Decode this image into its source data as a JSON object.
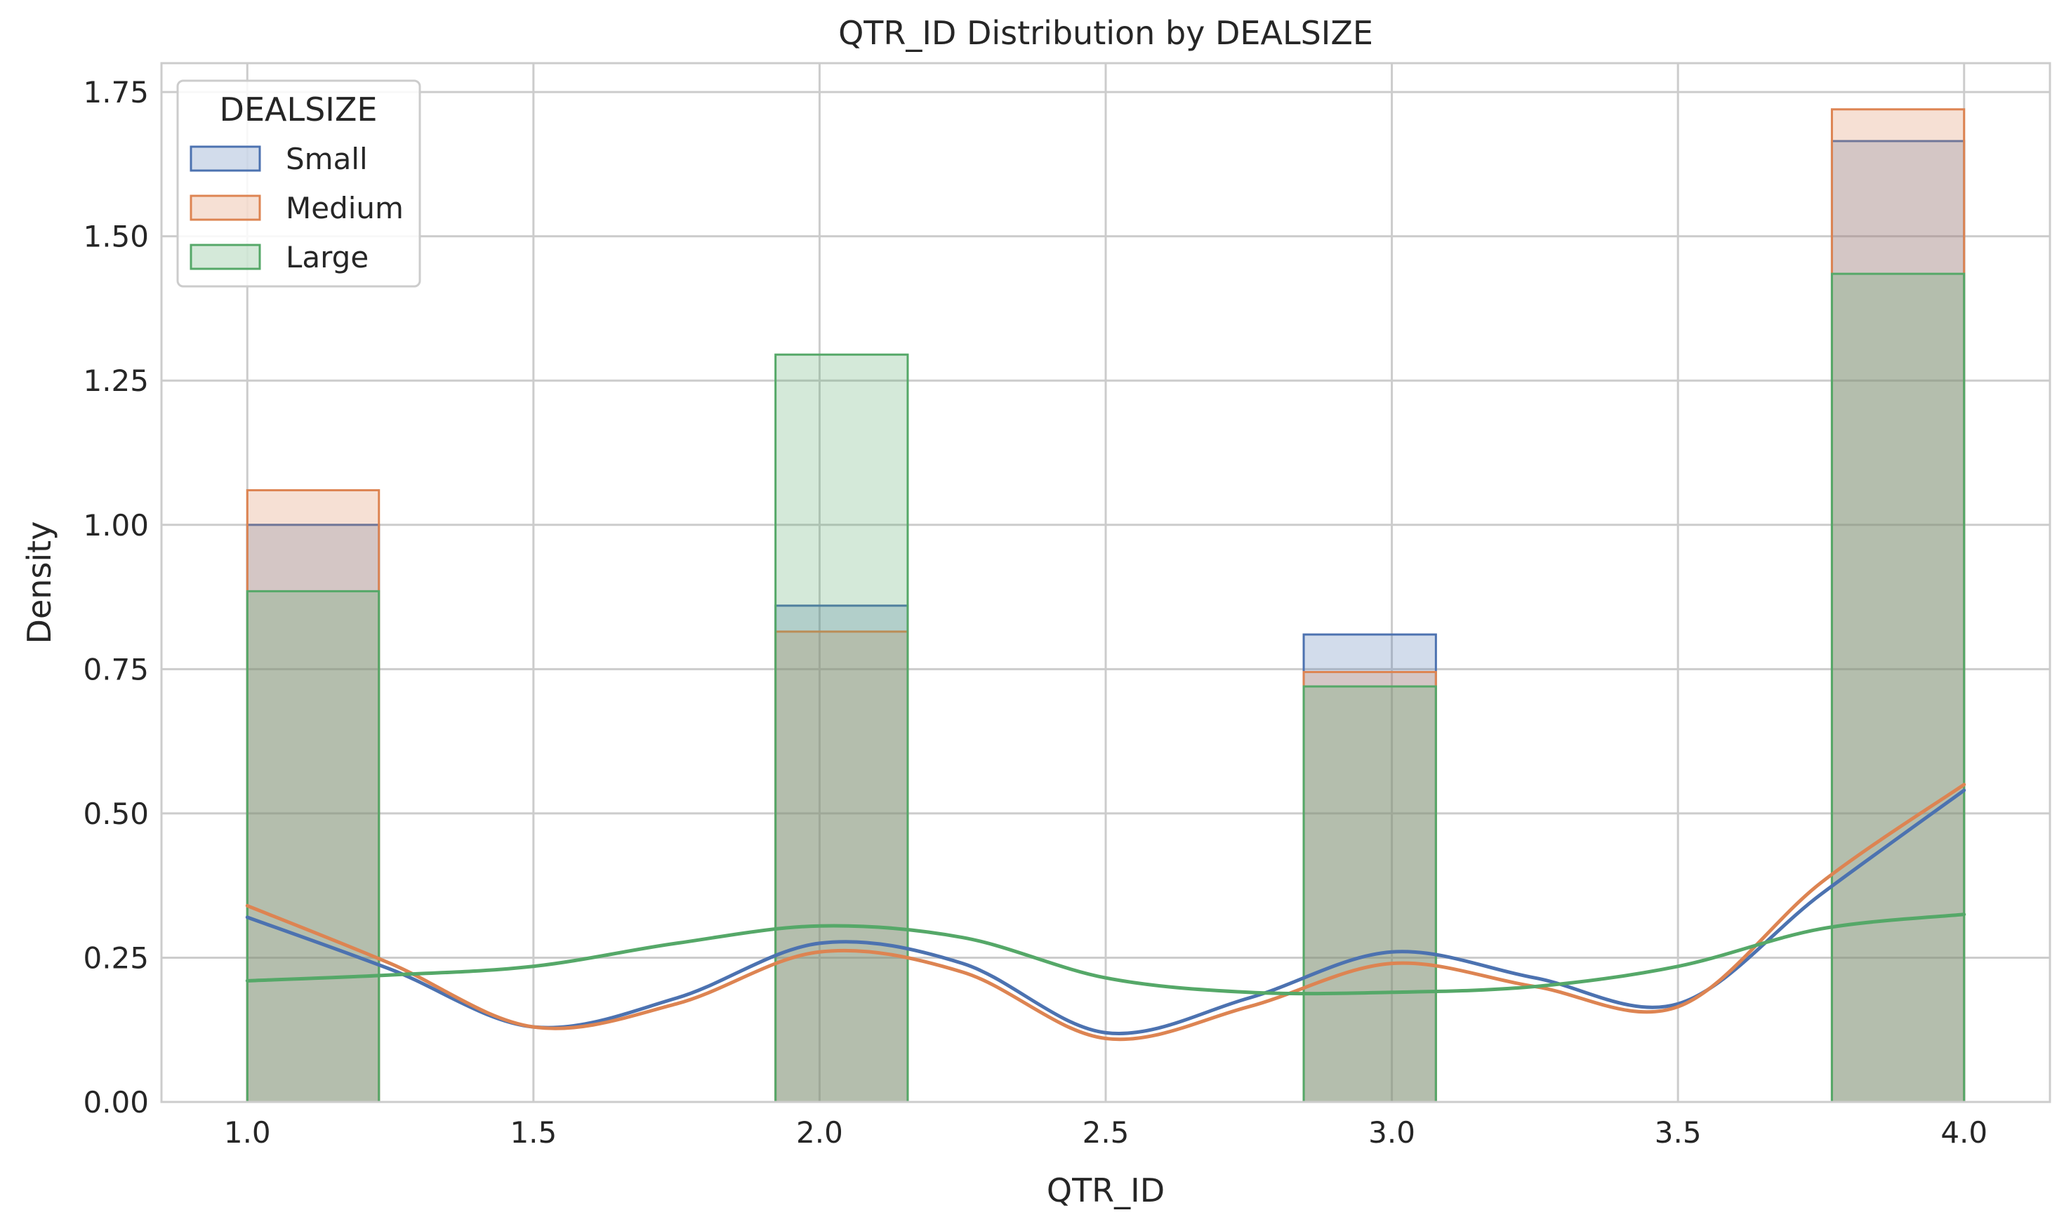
{
  "chart_data": {
    "type": "bar",
    "subtype": "histogram-with-kde",
    "title": "QTR_ID Distribution by DEALSIZE",
    "xlabel": "QTR_ID",
    "ylabel": "Density",
    "xlim": [
      0.85,
      4.15
    ],
    "ylim": [
      0,
      1.8
    ],
    "x_ticks": [
      "1.0",
      "1.5",
      "2.0",
      "2.5",
      "3.0",
      "3.5",
      "4.0"
    ],
    "y_ticks": [
      "0.00",
      "0.25",
      "0.50",
      "0.75",
      "1.00",
      "1.25",
      "1.50",
      "1.75"
    ],
    "grid": true,
    "legend": {
      "title": "DEALSIZE",
      "placement": "top-left"
    },
    "bins": [
      [
        1.0,
        1.23
      ],
      [
        1.923,
        2.154
      ],
      [
        2.846,
        3.077
      ],
      [
        3.769,
        4.0
      ]
    ],
    "series": [
      {
        "name": "Small",
        "color": "#4c72b0",
        "values": [
          1.0,
          0.86,
          0.81,
          1.665
        ],
        "kde_x": [
          1.0,
          1.25,
          1.5,
          1.75,
          2.0,
          2.25,
          2.5,
          2.75,
          3.0,
          3.25,
          3.5,
          3.75,
          4.0
        ],
        "kde_y": [
          0.32,
          0.23,
          0.13,
          0.18,
          0.275,
          0.24,
          0.12,
          0.18,
          0.26,
          0.215,
          0.17,
          0.36,
          0.54
        ]
      },
      {
        "name": "Medium",
        "color": "#dd8452",
        "values": [
          1.06,
          0.815,
          0.745,
          1.72
        ],
        "kde_x": [
          1.0,
          1.25,
          1.5,
          1.75,
          2.0,
          2.25,
          2.5,
          2.75,
          3.0,
          3.25,
          3.5,
          3.75,
          4.0
        ],
        "kde_y": [
          0.34,
          0.24,
          0.13,
          0.17,
          0.26,
          0.225,
          0.11,
          0.165,
          0.24,
          0.2,
          0.165,
          0.38,
          0.55
        ]
      },
      {
        "name": "Large",
        "color": "#55a868",
        "values": [
          0.885,
          1.295,
          0.72,
          1.435
        ],
        "kde_x": [
          1.0,
          1.25,
          1.5,
          1.75,
          2.0,
          2.25,
          2.5,
          2.75,
          3.0,
          3.25,
          3.5,
          3.75,
          4.0
        ],
        "kde_y": [
          0.21,
          0.22,
          0.235,
          0.275,
          0.305,
          0.285,
          0.215,
          0.19,
          0.19,
          0.2,
          0.235,
          0.3,
          0.325
        ]
      }
    ]
  }
}
